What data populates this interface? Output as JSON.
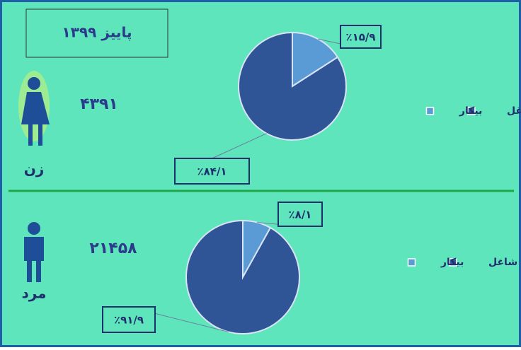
{
  "header": {
    "title": "پاییز ۱۳۹۹"
  },
  "chart_data": [
    {
      "type": "pie",
      "title": "زن",
      "subtitle": "۴۳۹۱",
      "categories": [
        "شاغل",
        "بیکار"
      ],
      "values": [
        84.1,
        15.9
      ],
      "value_labels": [
        "٪۸۴/۱",
        "٪۱۵/۹"
      ],
      "colors": [
        "#2f5597",
        "#5b9bd5"
      ],
      "legend": "right"
    },
    {
      "type": "pie",
      "title": "مرد",
      "subtitle": "۲۱۴۵۸",
      "categories": [
        "شاغل",
        "بیکار"
      ],
      "values": [
        91.9,
        8.1
      ],
      "value_labels": [
        "٪۹۱/۹",
        "٪۸/۱"
      ],
      "colors": [
        "#2f5597",
        "#5b9bd5"
      ],
      "legend": "right"
    }
  ]
}
